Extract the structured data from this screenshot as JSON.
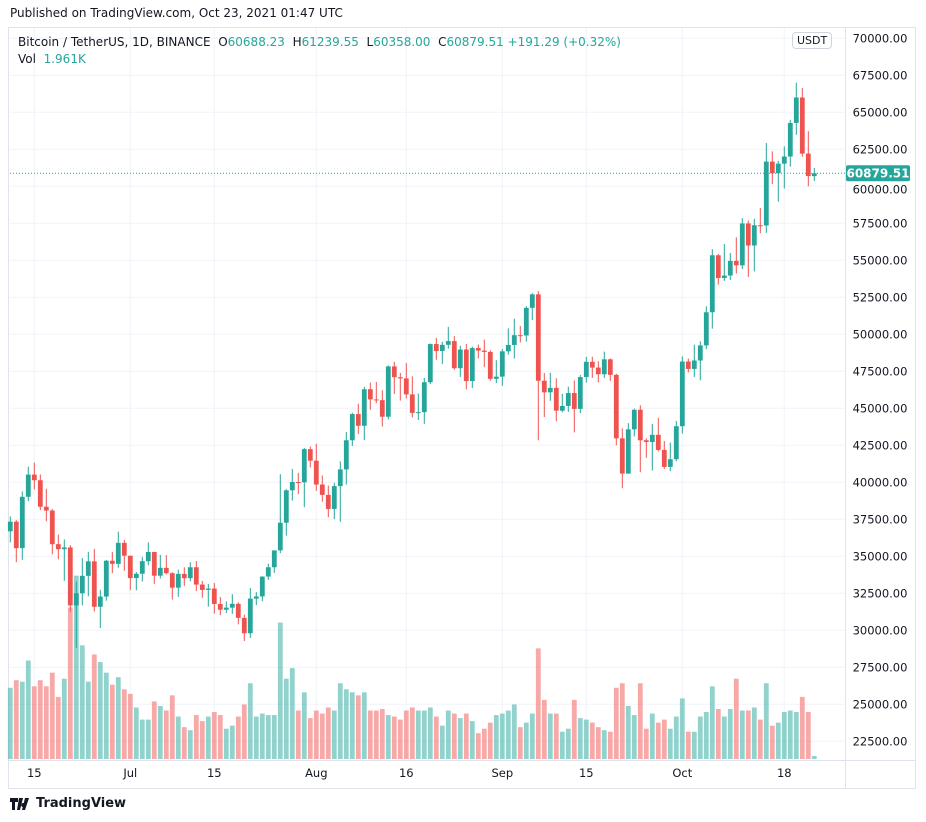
{
  "published": "Published on TradingView.com, Oct 23, 2021 01:47 UTC",
  "legend": {
    "symbol": "Bitcoin / TetherUS, 1D, BINANCE",
    "o_label": "O",
    "o": "60688.23",
    "h_label": "H",
    "h": "61239.55",
    "l_label": "L",
    "l": "60358.00",
    "c_label": "C",
    "c": "60879.51",
    "change": "+191.29 (+0.32%)",
    "vol_label": "Vol",
    "vol": "1.961K"
  },
  "currency_badge": "USDT",
  "last_price_label": "60879.51",
  "footer_brand": "TradingView",
  "colors": {
    "up": "#26a69a",
    "down": "#ef5350",
    "up_volume": "#26a69a80",
    "down_volume": "#ef535080",
    "grid": "#f0f3fa"
  },
  "chart_data": {
    "type": "candlestick",
    "title": "Bitcoin / TetherUS, 1D, BINANCE",
    "ylabel": "USDT",
    "ylim": [
      21200,
      70300
    ],
    "grid": true,
    "price_ticks": [
      "22500.00",
      "25000.00",
      "27500.00",
      "30000.00",
      "32500.00",
      "35000.00",
      "37500.00",
      "40000.00",
      "42500.00",
      "45000.00",
      "47500.00",
      "50000.00",
      "52500.00",
      "55000.00",
      "57500.00",
      "60000.00",
      "62500.00",
      "65000.00",
      "67500.00",
      "70000.00"
    ],
    "time_ticks": [
      {
        "label": "15",
        "date": "2021-06-15"
      },
      {
        "label": "Jul",
        "date": "2021-07-01"
      },
      {
        "label": "15",
        "date": "2021-07-15"
      },
      {
        "label": "Aug",
        "date": "2021-08-01"
      },
      {
        "label": "16",
        "date": "2021-08-16"
      },
      {
        "label": "Sep",
        "date": "2021-09-01"
      },
      {
        "label": "15",
        "date": "2021-09-15"
      },
      {
        "label": "Oct",
        "date": "2021-10-01"
      },
      {
        "label": "18",
        "date": "2021-10-18"
      }
    ],
    "last_price": 60879.51,
    "columns": [
      "date",
      "open",
      "high",
      "low",
      "close",
      "volume_k"
    ],
    "candles": [
      [
        "2021-06-11",
        36690,
        37690,
        35940,
        37340,
        47
      ],
      [
        "2021-06-12",
        37340,
        37440,
        34600,
        35550,
        52
      ],
      [
        "2021-06-13",
        35550,
        39380,
        34760,
        39020,
        51
      ],
      [
        "2021-06-14",
        39020,
        41060,
        38730,
        40520,
        65
      ],
      [
        "2021-06-15",
        40520,
        41330,
        39510,
        40140,
        48
      ],
      [
        "2021-06-16",
        40140,
        40530,
        38120,
        38350,
        52
      ],
      [
        "2021-06-17",
        38350,
        39560,
        37370,
        38090,
        48
      ],
      [
        "2021-06-18",
        38090,
        38200,
        35130,
        35820,
        57
      ],
      [
        "2021-06-19",
        35820,
        36460,
        34800,
        35480,
        41
      ],
      [
        "2021-06-20",
        35480,
        36140,
        33340,
        35600,
        53
      ],
      [
        "2021-06-21",
        35600,
        35750,
        31250,
        31680,
        100
      ],
      [
        "2021-06-22",
        31680,
        33300,
        28800,
        32500,
        121
      ],
      [
        "2021-06-23",
        32500,
        34880,
        31680,
        33680,
        75
      ],
      [
        "2021-06-24",
        33680,
        35300,
        32300,
        34660,
        51
      ],
      [
        "2021-06-25",
        34660,
        35500,
        31270,
        31590,
        69
      ],
      [
        "2021-06-26",
        31590,
        32730,
        30150,
        32280,
        64
      ],
      [
        "2021-06-27",
        32280,
        34750,
        32000,
        34700,
        57
      ],
      [
        "2021-06-28",
        34700,
        35300,
        33860,
        34490,
        49
      ],
      [
        "2021-06-29",
        34490,
        36670,
        34230,
        35910,
        54
      ],
      [
        "2021-06-30",
        35910,
        36100,
        34020,
        35040,
        46
      ],
      [
        "2021-07-01",
        35040,
        35040,
        32710,
        33530,
        43
      ],
      [
        "2021-07-02",
        33530,
        33940,
        32700,
        33820,
        34
      ],
      [
        "2021-07-03",
        33820,
        34960,
        33300,
        34670,
        26
      ],
      [
        "2021-07-04",
        34670,
        35940,
        34400,
        35290,
        26
      ],
      [
        "2021-07-05",
        35290,
        35310,
        33140,
        33690,
        38
      ],
      [
        "2021-07-06",
        33690,
        35100,
        33500,
        34220,
        35
      ],
      [
        "2021-07-07",
        34220,
        35070,
        33770,
        33860,
        32
      ],
      [
        "2021-07-08",
        33860,
        33920,
        32080,
        32880,
        42
      ],
      [
        "2021-07-09",
        32880,
        34100,
        32260,
        33810,
        28
      ],
      [
        "2021-07-10",
        33810,
        34260,
        33000,
        33520,
        21
      ],
      [
        "2021-07-11",
        33520,
        34600,
        33310,
        34260,
        19
      ],
      [
        "2021-07-12",
        34260,
        34680,
        32660,
        33090,
        29
      ],
      [
        "2021-07-13",
        33090,
        33340,
        32200,
        32730,
        25
      ],
      [
        "2021-07-14",
        32730,
        33130,
        31600,
        32820,
        28
      ],
      [
        "2021-07-15",
        32820,
        33190,
        31130,
        31780,
        31
      ],
      [
        "2021-07-16",
        31780,
        32250,
        31020,
        31390,
        29
      ],
      [
        "2021-07-17",
        31390,
        31950,
        31160,
        31530,
        20
      ],
      [
        "2021-07-18",
        31530,
        32440,
        31100,
        31790,
        22
      ],
      [
        "2021-07-19",
        31790,
        31890,
        30400,
        30840,
        28
      ],
      [
        "2021-07-20",
        30840,
        31060,
        29280,
        29800,
        36
      ],
      [
        "2021-07-21",
        29800,
        32860,
        29480,
        32140,
        50
      ],
      [
        "2021-07-22",
        32140,
        32580,
        31710,
        32290,
        28
      ],
      [
        "2021-07-23",
        32290,
        33650,
        31960,
        33630,
        30
      ],
      [
        "2021-07-24",
        33630,
        34500,
        33400,
        34260,
        29
      ],
      [
        "2021-07-25",
        34260,
        35400,
        33880,
        35400,
        29
      ],
      [
        "2021-07-26",
        35400,
        40550,
        35210,
        37270,
        90
      ],
      [
        "2021-07-27",
        37270,
        39540,
        36400,
        39460,
        53
      ],
      [
        "2021-07-28",
        39460,
        40900,
        38770,
        40020,
        60
      ],
      [
        "2021-07-29",
        40020,
        40640,
        39200,
        40000,
        32
      ],
      [
        "2021-07-30",
        40000,
        42320,
        38320,
        42240,
        44
      ],
      [
        "2021-07-31",
        42240,
        42420,
        41000,
        41460,
        27
      ],
      [
        "2021-08-01",
        41460,
        42600,
        39420,
        39850,
        32
      ],
      [
        "2021-08-02",
        39850,
        40460,
        38690,
        39150,
        30
      ],
      [
        "2021-08-03",
        39150,
        39780,
        37640,
        38200,
        34
      ],
      [
        "2021-08-04",
        38200,
        39970,
        37510,
        39740,
        32
      ],
      [
        "2021-08-05",
        39740,
        41420,
        37330,
        40870,
        50
      ],
      [
        "2021-08-06",
        40870,
        43390,
        39850,
        42840,
        46
      ],
      [
        "2021-08-07",
        42840,
        44700,
        42450,
        44610,
        44
      ],
      [
        "2021-08-08",
        44610,
        45310,
        43260,
        43820,
        42
      ],
      [
        "2021-08-09",
        43820,
        46450,
        42850,
        46290,
        44
      ],
      [
        "2021-08-10",
        46290,
        46740,
        44900,
        45600,
        32
      ],
      [
        "2021-08-11",
        45600,
        46780,
        45350,
        45550,
        32
      ],
      [
        "2021-08-12",
        45550,
        46220,
        43770,
        44430,
        33
      ],
      [
        "2021-08-13",
        44430,
        47890,
        44250,
        47830,
        29
      ],
      [
        "2021-08-14",
        47830,
        48140,
        45970,
        47100,
        28
      ],
      [
        "2021-08-15",
        47100,
        47390,
        45520,
        47020,
        26
      ],
      [
        "2021-08-16",
        47020,
        48050,
        45660,
        45940,
        32
      ],
      [
        "2021-08-17",
        45940,
        47160,
        44380,
        44690,
        34
      ],
      [
        "2021-08-18",
        44690,
        46000,
        44210,
        44740,
        32
      ],
      [
        "2021-08-19",
        44740,
        47050,
        43950,
        46760,
        32
      ],
      [
        "2021-08-20",
        46760,
        49380,
        46630,
        49340,
        34
      ],
      [
        "2021-08-21",
        49340,
        49760,
        48280,
        48870,
        28
      ],
      [
        "2021-08-22",
        48870,
        49500,
        48000,
        49290,
        22
      ],
      [
        "2021-08-23",
        49290,
        50500,
        49030,
        49540,
        32
      ],
      [
        "2021-08-24",
        49540,
        49880,
        47600,
        47710,
        30
      ],
      [
        "2021-08-25",
        47710,
        49230,
        47120,
        48970,
        27
      ],
      [
        "2021-08-26",
        48970,
        49350,
        46280,
        46840,
        30
      ],
      [
        "2021-08-27",
        46840,
        49170,
        46370,
        49070,
        25
      ],
      [
        "2021-08-28",
        49070,
        49310,
        48370,
        48900,
        17
      ],
      [
        "2021-08-29",
        48900,
        49640,
        47780,
        48810,
        20
      ],
      [
        "2021-08-30",
        48810,
        48910,
        46860,
        46990,
        24
      ],
      [
        "2021-08-31",
        46990,
        48250,
        46700,
        47140,
        29
      ],
      [
        "2021-09-01",
        47140,
        49000,
        46510,
        48850,
        30
      ],
      [
        "2021-09-02",
        48850,
        50400,
        48630,
        49280,
        32
      ],
      [
        "2021-09-03",
        49280,
        51050,
        48360,
        49940,
        36
      ],
      [
        "2021-09-04",
        49940,
        50560,
        49450,
        49920,
        21
      ],
      [
        "2021-09-05",
        49920,
        51900,
        49500,
        51790,
        24
      ],
      [
        "2021-09-06",
        51790,
        52780,
        50970,
        52700,
        30
      ],
      [
        "2021-09-07",
        52700,
        52920,
        42840,
        46860,
        73
      ],
      [
        "2021-09-08",
        46860,
        47380,
        44410,
        46080,
        39
      ],
      [
        "2021-09-09",
        46080,
        47400,
        45510,
        46380,
        30
      ],
      [
        "2021-09-10",
        46380,
        47030,
        44130,
        44840,
        30
      ],
      [
        "2021-09-11",
        44840,
        45980,
        44730,
        45160,
        18
      ],
      [
        "2021-09-12",
        45160,
        46460,
        44760,
        46030,
        20
      ],
      [
        "2021-09-13",
        46030,
        46880,
        43370,
        44960,
        39
      ],
      [
        "2021-09-14",
        44960,
        47250,
        44670,
        47110,
        27
      ],
      [
        "2021-09-15",
        47110,
        48480,
        46740,
        48140,
        26
      ],
      [
        "2021-09-16",
        48140,
        48490,
        47050,
        47750,
        24
      ],
      [
        "2021-09-17",
        47750,
        48170,
        46750,
        47300,
        21
      ],
      [
        "2021-09-18",
        47300,
        48830,
        47050,
        48310,
        19
      ],
      [
        "2021-09-19",
        48310,
        48370,
        46850,
        47260,
        18
      ],
      [
        "2021-09-20",
        47260,
        47330,
        42500,
        42970,
        47
      ],
      [
        "2021-09-21",
        42970,
        43640,
        39600,
        40590,
        50
      ],
      [
        "2021-09-22",
        40590,
        44000,
        40570,
        43580,
        35
      ],
      [
        "2021-09-23",
        43580,
        44980,
        43100,
        44900,
        29
      ],
      [
        "2021-09-24",
        44900,
        45200,
        40680,
        42840,
        50
      ],
      [
        "2021-09-25",
        42840,
        42970,
        41650,
        42720,
        20
      ],
      [
        "2021-09-26",
        42720,
        43950,
        40800,
        43210,
        30
      ],
      [
        "2021-09-27",
        43210,
        44350,
        42080,
        42190,
        24
      ],
      [
        "2021-09-28",
        42190,
        42790,
        40900,
        41040,
        26
      ],
      [
        "2021-09-29",
        41040,
        42690,
        40750,
        41560,
        20
      ],
      [
        "2021-09-30",
        41560,
        44140,
        41420,
        43790,
        28
      ],
      [
        "2021-10-01",
        43790,
        48500,
        43290,
        48160,
        40
      ],
      [
        "2021-10-02",
        48160,
        48360,
        47430,
        47660,
        18
      ],
      [
        "2021-10-03",
        47660,
        49300,
        47120,
        48230,
        18
      ],
      [
        "2021-10-04",
        48230,
        49530,
        46890,
        49250,
        28
      ],
      [
        "2021-10-05",
        49250,
        51890,
        49000,
        51490,
        31
      ],
      [
        "2021-10-06",
        51490,
        55750,
        50380,
        55340,
        48
      ],
      [
        "2021-10-07",
        55340,
        55430,
        53360,
        53800,
        33
      ],
      [
        "2021-10-08",
        53800,
        56100,
        53610,
        53970,
        28
      ],
      [
        "2021-10-09",
        53970,
        55490,
        53660,
        54960,
        33
      ],
      [
        "2021-10-10",
        54960,
        56560,
        54110,
        54660,
        53
      ],
      [
        "2021-10-11",
        54660,
        57840,
        54420,
        57490,
        32
      ],
      [
        "2021-10-12",
        57490,
        57680,
        53880,
        56000,
        32
      ],
      [
        "2021-10-13",
        56000,
        57800,
        54250,
        57370,
        34
      ],
      [
        "2021-10-14",
        57370,
        58530,
        56820,
        57350,
        26
      ],
      [
        "2021-10-15",
        57350,
        62930,
        56850,
        61670,
        50
      ],
      [
        "2021-10-16",
        61670,
        62360,
        60150,
        60880,
        22
      ],
      [
        "2021-10-17",
        60880,
        61720,
        58960,
        61530,
        24
      ],
      [
        "2021-10-18",
        61530,
        62700,
        59850,
        62010,
        31
      ],
      [
        "2021-10-19",
        62010,
        64490,
        61330,
        64280,
        32
      ],
      [
        "2021-10-20",
        64280,
        67000,
        63480,
        66000,
        31
      ],
      [
        "2021-10-21",
        66000,
        66640,
        62000,
        62210,
        41
      ],
      [
        "2021-10-22",
        62210,
        63730,
        60000,
        60690,
        31
      ],
      [
        "2021-10-23",
        60688.23,
        61239.55,
        60358.0,
        60879.51,
        1.961
      ]
    ]
  }
}
